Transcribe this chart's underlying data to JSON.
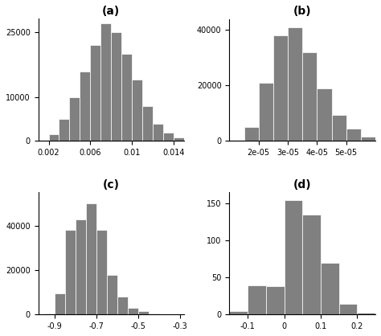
{
  "panels": {
    "a": {
      "label": "(a)",
      "bin_edges": [
        0.001,
        0.002,
        0.003,
        0.004,
        0.005,
        0.006,
        0.007,
        0.008,
        0.009,
        0.01,
        0.011,
        0.012,
        0.013,
        0.014,
        0.015
      ],
      "counts": [
        200,
        1500,
        5000,
        10000,
        16000,
        22000,
        27000,
        25000,
        20000,
        14000,
        8000,
        4000,
        2000,
        800
      ],
      "xlim": [
        0.001,
        0.015
      ],
      "xticks": [
        0.002,
        0.006,
        0.01,
        0.014
      ],
      "ylim": [
        0,
        28000
      ],
      "yticks": [
        0,
        10000,
        25000
      ]
    },
    "b": {
      "label": "(b)",
      "bin_edges": [
        1e-05,
        1.5e-05,
        2e-05,
        2.5e-05,
        3e-05,
        3.5e-05,
        4e-05,
        4.5e-05,
        5e-05,
        5.5e-05,
        6e-05
      ],
      "counts": [
        500,
        5000,
        21000,
        38000,
        41000,
        32000,
        19000,
        9500,
        4500,
        1500
      ],
      "xlim": [
        1e-05,
        6e-05
      ],
      "xticks": [
        2e-05,
        3e-05,
        4e-05,
        5e-05
      ],
      "ylim": [
        0,
        44000
      ],
      "yticks": [
        0,
        20000,
        40000
      ]
    },
    "c": {
      "label": "(c)",
      "bin_edges": [
        -0.95,
        -0.9,
        -0.85,
        -0.8,
        -0.75,
        -0.7,
        -0.65,
        -0.6,
        -0.55,
        -0.5,
        -0.45,
        -0.4,
        -0.35,
        -0.3
      ],
      "counts": [
        500,
        9500,
        38000,
        43000,
        50000,
        38000,
        18000,
        8000,
        3000,
        1500,
        500,
        200,
        50
      ],
      "xlim": [
        -0.98,
        -0.28
      ],
      "xticks": [
        -0.9,
        -0.7,
        -0.5,
        -0.3
      ],
      "ylim": [
        0,
        55000
      ],
      "yticks": [
        0,
        20000,
        40000
      ]
    },
    "d": {
      "label": "(d)",
      "bin_edges": [
        -0.15,
        -0.1,
        -0.05,
        0.0,
        0.05,
        0.1,
        0.15,
        0.2,
        0.25
      ],
      "counts": [
        5,
        40,
        38,
        155,
        135,
        70,
        15,
        3
      ],
      "xlim": [
        -0.15,
        0.25
      ],
      "xticks": [
        -0.1,
        0.0,
        0.1,
        0.2
      ],
      "ylim": [
        0,
        165
      ],
      "yticks": [
        0,
        50,
        100,
        150
      ]
    }
  },
  "bar_color": "#808080",
  "bar_edge_color": "white",
  "background_color": "#ffffff",
  "label_fontsize": 10,
  "label_fontweight": "bold"
}
